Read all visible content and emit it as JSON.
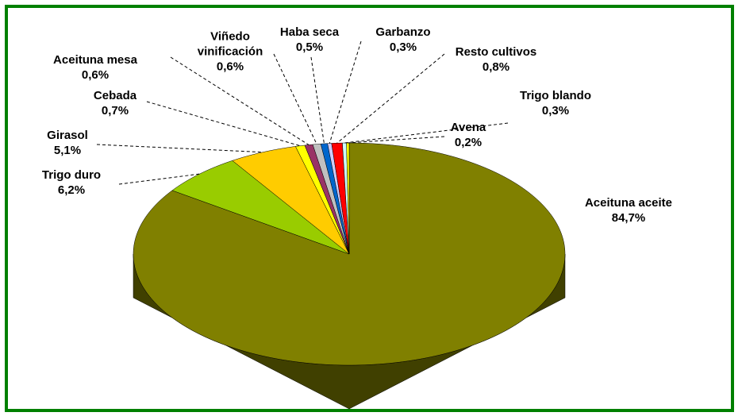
{
  "chart_data": {
    "type": "pie",
    "categories": [
      "Aceituna aceite",
      "Trigo duro",
      "Girasol",
      "Cebada",
      "Aceituna mesa",
      "Viñedo vinificación",
      "Haba seca",
      "Garbanzo",
      "Resto cultivos",
      "Trigo blando",
      "Avena"
    ],
    "values": [
      84.7,
      6.2,
      5.1,
      0.7,
      0.6,
      0.6,
      0.5,
      0.3,
      0.8,
      0.3,
      0.2
    ],
    "value_labels": [
      "84,7%",
      "6,2%",
      "5,1%",
      "0,7%",
      "0,6%",
      "0,6%",
      "0,5%",
      "0,3%",
      "0,8%",
      "0,3%",
      "0,2%"
    ],
    "colors": [
      "#808000",
      "#99cc00",
      "#ffcc00",
      "#ffff00",
      "#993366",
      "#c0c0c0",
      "#0066cc",
      "#ccccff",
      "#ff0000",
      "#ccffff",
      "#ffff00"
    ]
  }
}
